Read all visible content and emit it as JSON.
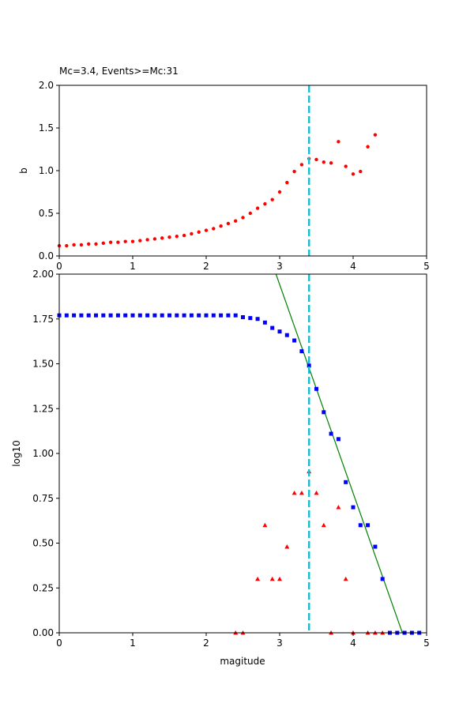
{
  "chart_data": [
    {
      "type": "scatter",
      "title": "Mc=3.4, Events>=Mc:31",
      "xlabel": "",
      "ylabel": "b",
      "xlim": [
        0,
        5
      ],
      "ylim": [
        0,
        2
      ],
      "xticks": [
        "0",
        "1",
        "2",
        "3",
        "4",
        "5"
      ],
      "yticks": [
        "0.0",
        "0.5",
        "1.0",
        "1.5",
        "2.0"
      ],
      "mc_line": 3.4,
      "colors": {
        "points": "#ff0000",
        "mc_line": "#17becf"
      },
      "series": [
        {
          "marker": "circle",
          "x": [
            0.0,
            0.1,
            0.2,
            0.3,
            0.4,
            0.5,
            0.6,
            0.7,
            0.8,
            0.9,
            1.0,
            1.1,
            1.2,
            1.3,
            1.4,
            1.5,
            1.6,
            1.7,
            1.8,
            1.9,
            2.0,
            2.1,
            2.2,
            2.3,
            2.4,
            2.5,
            2.6,
            2.7,
            2.8,
            2.9,
            3.0,
            3.1,
            3.2,
            3.3,
            3.4,
            3.5,
            3.6,
            3.7,
            3.8,
            3.9,
            4.0,
            4.1,
            4.2,
            4.3
          ],
          "y": [
            0.12,
            0.12,
            0.13,
            0.13,
            0.14,
            0.14,
            0.15,
            0.16,
            0.16,
            0.17,
            0.17,
            0.18,
            0.19,
            0.2,
            0.21,
            0.22,
            0.23,
            0.24,
            0.26,
            0.28,
            0.3,
            0.32,
            0.35,
            0.38,
            0.41,
            0.45,
            0.5,
            0.56,
            0.61,
            0.66,
            0.75,
            0.86,
            0.99,
            1.07,
            1.14,
            1.13,
            1.1,
            1.09,
            1.34,
            1.05,
            0.96,
            0.99,
            1.28,
            1.42
          ]
        }
      ]
    },
    {
      "type": "scatter",
      "title": "",
      "xlabel": "magitude",
      "ylabel": "log10",
      "xlim": [
        0,
        5
      ],
      "ylim": [
        0,
        2
      ],
      "xticks": [
        "0",
        "1",
        "2",
        "3",
        "4",
        "5"
      ],
      "yticks": [
        "0.00",
        "0.25",
        "0.50",
        "0.75",
        "1.00",
        "1.25",
        "1.50",
        "1.75",
        "2.00"
      ],
      "mc_line": 3.4,
      "fit_line": {
        "x": [
          2.95,
          4.67
        ],
        "y": [
          2.0,
          0.0
        ]
      },
      "colors": {
        "cumulative": "#0000ff",
        "noncumulative": "#ff0000",
        "fit": "#008000",
        "mc_line": "#17becf"
      },
      "series": [
        {
          "marker": "square",
          "x": [
            0.0,
            0.1,
            0.2,
            0.3,
            0.4,
            0.5,
            0.6,
            0.7,
            0.8,
            0.9,
            1.0,
            1.1,
            1.2,
            1.3,
            1.4,
            1.5,
            1.6,
            1.7,
            1.8,
            1.9,
            2.0,
            2.1,
            2.2,
            2.3,
            2.4,
            2.5,
            2.6,
            2.7,
            2.8,
            2.9,
            3.0,
            3.1,
            3.2,
            3.3,
            3.4,
            3.5,
            3.6,
            3.7,
            3.8,
            3.9,
            4.0,
            4.1,
            4.2,
            4.3,
            4.4,
            4.5,
            4.6,
            4.7,
            4.8,
            4.9
          ],
          "y": [
            1.77,
            1.77,
            1.77,
            1.77,
            1.77,
            1.77,
            1.77,
            1.77,
            1.77,
            1.77,
            1.77,
            1.77,
            1.77,
            1.77,
            1.77,
            1.77,
            1.77,
            1.77,
            1.77,
            1.77,
            1.77,
            1.77,
            1.77,
            1.77,
            1.77,
            1.76,
            1.755,
            1.75,
            1.73,
            1.7,
            1.68,
            1.66,
            1.63,
            1.57,
            1.49,
            1.36,
            1.23,
            1.11,
            1.08,
            0.84,
            0.7,
            0.6,
            0.6,
            0.48,
            0.3,
            0.0,
            0.0,
            0.0,
            0.0,
            0.0
          ]
        },
        {
          "marker": "triangle",
          "x": [
            2.4,
            2.5,
            2.7,
            2.8,
            2.9,
            3.0,
            3.1,
            3.2,
            3.3,
            3.4,
            3.5,
            3.6,
            3.7,
            3.8,
            3.9,
            4.0,
            4.2,
            4.3,
            4.4
          ],
          "y": [
            0.0,
            0.0,
            0.3,
            0.6,
            0.3,
            0.3,
            0.48,
            0.78,
            0.78,
            0.9,
            0.78,
            0.6,
            0.0,
            0.7,
            0.3,
            0.0,
            0.0,
            0.0,
            0.0
          ]
        }
      ]
    }
  ]
}
